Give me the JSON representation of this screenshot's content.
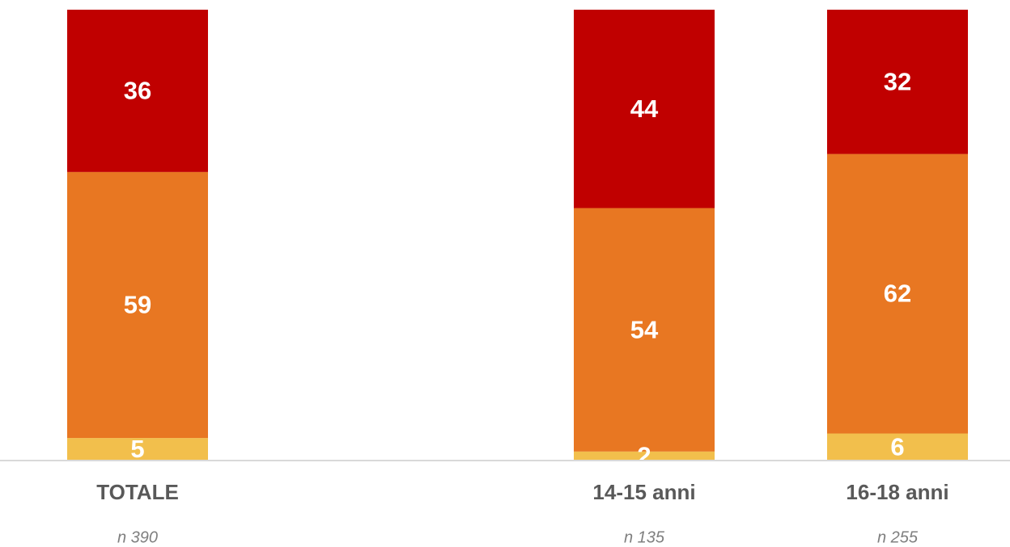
{
  "chart_data": {
    "type": "stacked_bar",
    "categories": [
      "TOTALE",
      null,
      "14-15 anni",
      "16-18 anni"
    ],
    "sample_labels": [
      "n 390",
      null,
      "n 135",
      "n 255"
    ],
    "series": [
      {
        "color": "#f2bf4c",
        "values": [
          5,
          null,
          2,
          6
        ]
      },
      {
        "color": "#e87722",
        "values": [
          59,
          null,
          54,
          62
        ]
      },
      {
        "color": "#c00000",
        "values": [
          36,
          null,
          44,
          32
        ]
      }
    ],
    "ylim": [
      0,
      100
    ]
  }
}
